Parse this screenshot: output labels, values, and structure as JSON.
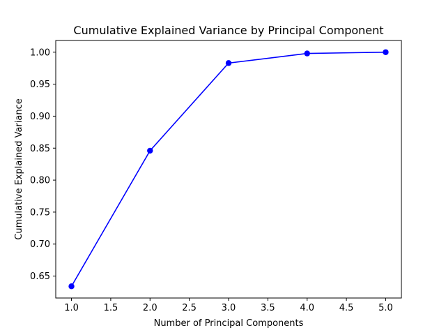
{
  "chart_data": {
    "type": "line",
    "title": "Cumulative Explained Variance by Principal Component",
    "xlabel": "Number of Principal Components",
    "ylabel": "Cumulative Explained Variance",
    "x": [
      1,
      2,
      3,
      4,
      5
    ],
    "series": [
      {
        "values": [
          0.634,
          0.846,
          0.983,
          0.998,
          1.0
        ],
        "color": "#0000ff",
        "marker": "circle"
      }
    ],
    "xlim": [
      0.8,
      5.2
    ],
    "ylim": [
      0.6157,
      1.0183
    ],
    "xticks": [
      "1.0",
      "1.5",
      "2.0",
      "2.5",
      "3.0",
      "3.5",
      "4.0",
      "4.5",
      "5.0"
    ],
    "yticks": [
      "0.65",
      "0.70",
      "0.75",
      "0.80",
      "0.85",
      "0.90",
      "0.95",
      "1.00"
    ],
    "grid": false,
    "legend": "none"
  }
}
